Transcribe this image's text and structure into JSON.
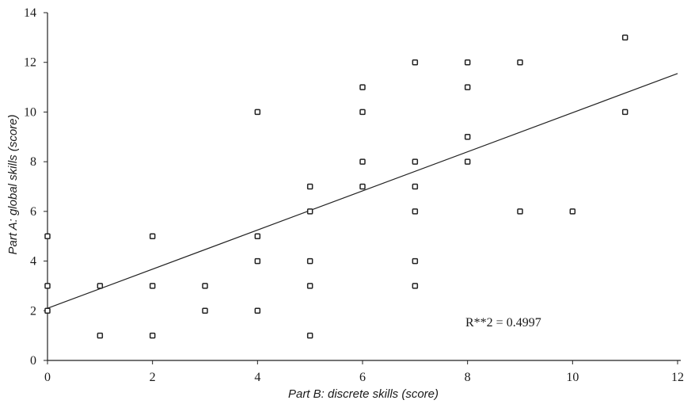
{
  "chart_data": {
    "type": "scatter",
    "title": "",
    "xlabel": "Part B: discrete skills (score)",
    "ylabel": "Part A: global skills (score)",
    "xlim": [
      0,
      12
    ],
    "ylim": [
      0,
      14
    ],
    "x_ticks": [
      "0",
      "2",
      "4",
      "6",
      "8",
      "10",
      "12"
    ],
    "y_ticks": [
      "0",
      "2",
      "4",
      "6",
      "8",
      "10",
      "12",
      "14"
    ],
    "grid": false,
    "legend": "none",
    "annotation": "R**2 = 0.4997",
    "series": [
      {
        "points": [
          {
            "x": 0,
            "y": 5
          },
          {
            "x": 0,
            "y": 3
          },
          {
            "x": 0,
            "y": 2
          },
          {
            "x": 1,
            "y": 3
          },
          {
            "x": 1,
            "y": 1
          },
          {
            "x": 2,
            "y": 5
          },
          {
            "x": 2,
            "y": 3
          },
          {
            "x": 2,
            "y": 1
          },
          {
            "x": 3,
            "y": 3
          },
          {
            "x": 3,
            "y": 2
          },
          {
            "x": 4,
            "y": 10
          },
          {
            "x": 4,
            "y": 5
          },
          {
            "x": 4,
            "y": 4
          },
          {
            "x": 4,
            "y": 2
          },
          {
            "x": 5,
            "y": 7
          },
          {
            "x": 5,
            "y": 6
          },
          {
            "x": 5,
            "y": 4
          },
          {
            "x": 5,
            "y": 3
          },
          {
            "x": 5,
            "y": 1
          },
          {
            "x": 6,
            "y": 11
          },
          {
            "x": 6,
            "y": 10
          },
          {
            "x": 6,
            "y": 8
          },
          {
            "x": 6,
            "y": 7
          },
          {
            "x": 7,
            "y": 12
          },
          {
            "x": 7,
            "y": 8
          },
          {
            "x": 7,
            "y": 7
          },
          {
            "x": 7,
            "y": 6
          },
          {
            "x": 7,
            "y": 4
          },
          {
            "x": 7,
            "y": 3
          },
          {
            "x": 8,
            "y": 12
          },
          {
            "x": 8,
            "y": 11
          },
          {
            "x": 8,
            "y": 9
          },
          {
            "x": 8,
            "y": 8
          },
          {
            "x": 9,
            "y": 12
          },
          {
            "x": 9,
            "y": 6
          },
          {
            "x": 10,
            "y": 6
          },
          {
            "x": 11,
            "y": 13
          },
          {
            "x": 11,
            "y": 10
          }
        ]
      }
    ],
    "trendline": {
      "x": [
        0,
        12
      ],
      "y": [
        2.1,
        11.55
      ]
    }
  }
}
